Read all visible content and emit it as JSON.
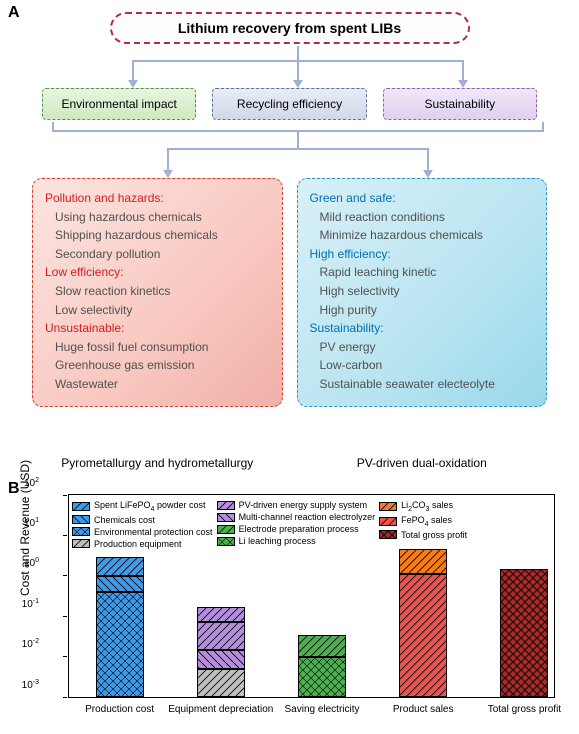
{
  "panelA": {
    "label": "A",
    "title": "Lithium recovery from spent LIBs",
    "categories": [
      {
        "label": "Environmental impact",
        "class": "env"
      },
      {
        "label": "Recycling efficiency",
        "class": "eff"
      },
      {
        "label": "Sustainability",
        "class": "sus"
      }
    ],
    "left": {
      "caption": "Pyrometallurgy and hydrometallurgy",
      "sections": [
        {
          "head": "Pollution and hazards:",
          "items": [
            "Using hazardous chemicals",
            "Shipping hazardous chemicals",
            "Secondary pollution"
          ]
        },
        {
          "head": "Low efficiency:",
          "items": [
            "Slow reaction kinetics",
            "Low selectivity"
          ]
        },
        {
          "head": "Unsustainable:",
          "items": [
            "Huge fossil fuel consumption",
            "Greenhouse gas emission",
            "Wastewater"
          ]
        }
      ]
    },
    "right": {
      "caption": "PV-driven dual-oxidation",
      "sections": [
        {
          "head": "Green and safe:",
          "items": [
            "Mild reaction conditions",
            "Minimize hazardous chemicals"
          ]
        },
        {
          "head": "High efficiency:",
          "items": [
            "Rapid leaching kinetic",
            "High selectivity",
            "High purity"
          ]
        },
        {
          "head": "Sustainability:",
          "items": [
            "PV energy",
            "Low-carbon",
            "Sustainable seawater electeolyte"
          ]
        }
      ]
    }
  },
  "panelB": {
    "label": "B",
    "ylabel": "Cost and Revenue (USD)",
    "ylim": [
      0.001,
      100
    ],
    "yticks": [
      {
        "exp": -3,
        "frac": 0.0
      },
      {
        "exp": -2,
        "frac": 0.2
      },
      {
        "exp": -1,
        "frac": 0.4
      },
      {
        "exp": 0,
        "frac": 0.6
      },
      {
        "exp": 1,
        "frac": 0.8
      },
      {
        "exp": 2,
        "frac": 1.0
      }
    ],
    "colors": {
      "blue": "#3d9be9",
      "purple": "#b48edd",
      "green": "#4cb050",
      "orange": "#f57c20",
      "red": "#e9544f",
      "darkred": "#b02828",
      "grey": "#bfbfbf"
    },
    "legend": [
      [
        {
          "label": "Spent LiFePO4 powder cost",
          "color": "blue",
          "pattern": "diag"
        },
        {
          "label": "Chemicals cost",
          "color": "blue",
          "pattern": "diag2"
        },
        {
          "label": "Environmental protection cost",
          "color": "blue",
          "pattern": "grid"
        },
        {
          "label": "Production equipment",
          "color": "grey",
          "pattern": "diag"
        }
      ],
      [
        {
          "label": "PV-driven energy supply system",
          "color": "purple",
          "pattern": "diag"
        },
        {
          "label": "Multi-channel reaction electrolyzer",
          "color": "purple",
          "pattern": "diag2"
        },
        {
          "label": "Electrode preparation process",
          "color": "green",
          "pattern": "diag"
        },
        {
          "label": "Li leaching process",
          "color": "green",
          "pattern": "grid"
        }
      ],
      [
        {
          "label": "Li2CO3 sales",
          "color": "orange",
          "pattern": "diag"
        },
        {
          "label": "FePO4 sales",
          "color": "red",
          "pattern": "diag"
        },
        {
          "label": "Total gross profit",
          "color": "darkred",
          "pattern": "cross"
        }
      ]
    ],
    "xcategories": [
      "Production cost",
      "Equipment depreciation",
      "Saving electricity",
      "Product sales",
      "Total gross profit"
    ],
    "bars": [
      {
        "x": 0.1,
        "segments": [
          {
            "from": 0.001,
            "to": 0.4,
            "color": "blue",
            "pattern": "grid"
          },
          {
            "from": 0.4,
            "to": 1.0,
            "color": "blue",
            "pattern": "diag2"
          },
          {
            "from": 1.0,
            "to": 3.0,
            "color": "blue",
            "pattern": "diag"
          }
        ]
      },
      {
        "x": 0.3,
        "segments": [
          {
            "from": 0.001,
            "to": 0.005,
            "color": "grey",
            "pattern": "diag"
          },
          {
            "from": 0.005,
            "to": 0.015,
            "color": "purple",
            "pattern": "diag2"
          },
          {
            "from": 0.015,
            "to": 0.07,
            "color": "purple",
            "pattern": "diag"
          },
          {
            "from": 0.07,
            "to": 0.17,
            "color": "purple",
            "pattern": "diag"
          }
        ]
      },
      {
        "x": 0.5,
        "segments": [
          {
            "from": 0.001,
            "to": 0.01,
            "color": "green",
            "pattern": "grid"
          },
          {
            "from": 0.01,
            "to": 0.035,
            "color": "green",
            "pattern": "diag"
          }
        ]
      },
      {
        "x": 0.7,
        "segments": [
          {
            "from": 0.001,
            "to": 1.1,
            "color": "red",
            "pattern": "diag"
          },
          {
            "from": 1.1,
            "to": 4.5,
            "color": "orange",
            "pattern": "diag"
          }
        ]
      },
      {
        "x": 0.9,
        "segments": [
          {
            "from": 0.001,
            "to": 1.5,
            "color": "darkred",
            "pattern": "cross"
          }
        ]
      }
    ],
    "chartHeightPx": 202,
    "chartWidthPx": 506
  }
}
